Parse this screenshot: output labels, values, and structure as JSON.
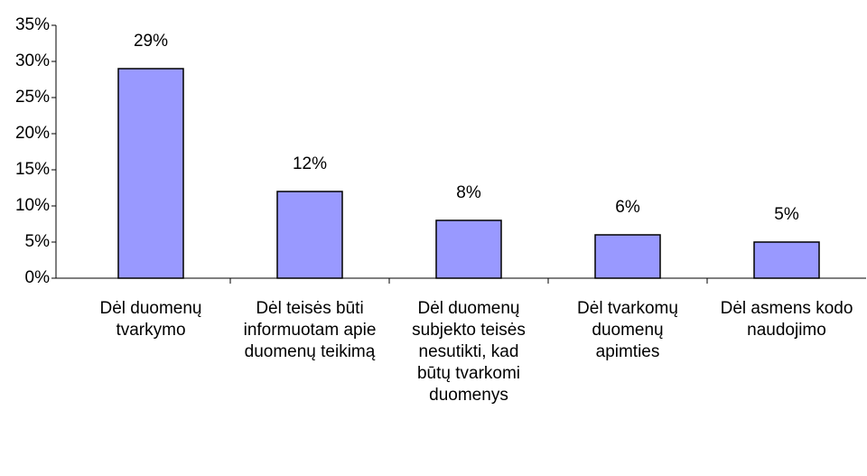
{
  "chart_data": {
    "type": "bar",
    "categories": [
      "Dėl duomenų tvarkymo",
      "Dėl teisės būti informuotam apie duomenų teikimą",
      "Dėl duomenų subjekto teisės nesutikti, kad būtų tvarkomi duomenys",
      "Dėl tvarkomų duomenų apimties",
      "Dėl asmens kodo naudojimo"
    ],
    "values": [
      29,
      12,
      8,
      6,
      5
    ],
    "value_labels": [
      "29%",
      "12%",
      "8%",
      "6%",
      "5%"
    ],
    "color": "#9999ff",
    "ylim": [
      0,
      35
    ],
    "yticks": [
      {
        "value": 0,
        "label": "0%"
      },
      {
        "value": 5,
        "label": "5%"
      },
      {
        "value": 10,
        "label": "10%"
      },
      {
        "value": 15,
        "label": "15%"
      },
      {
        "value": 20,
        "label": "20%"
      },
      {
        "value": 25,
        "label": "25%"
      },
      {
        "value": 30,
        "label": "30%"
      },
      {
        "value": 35,
        "label": "35%"
      }
    ]
  }
}
